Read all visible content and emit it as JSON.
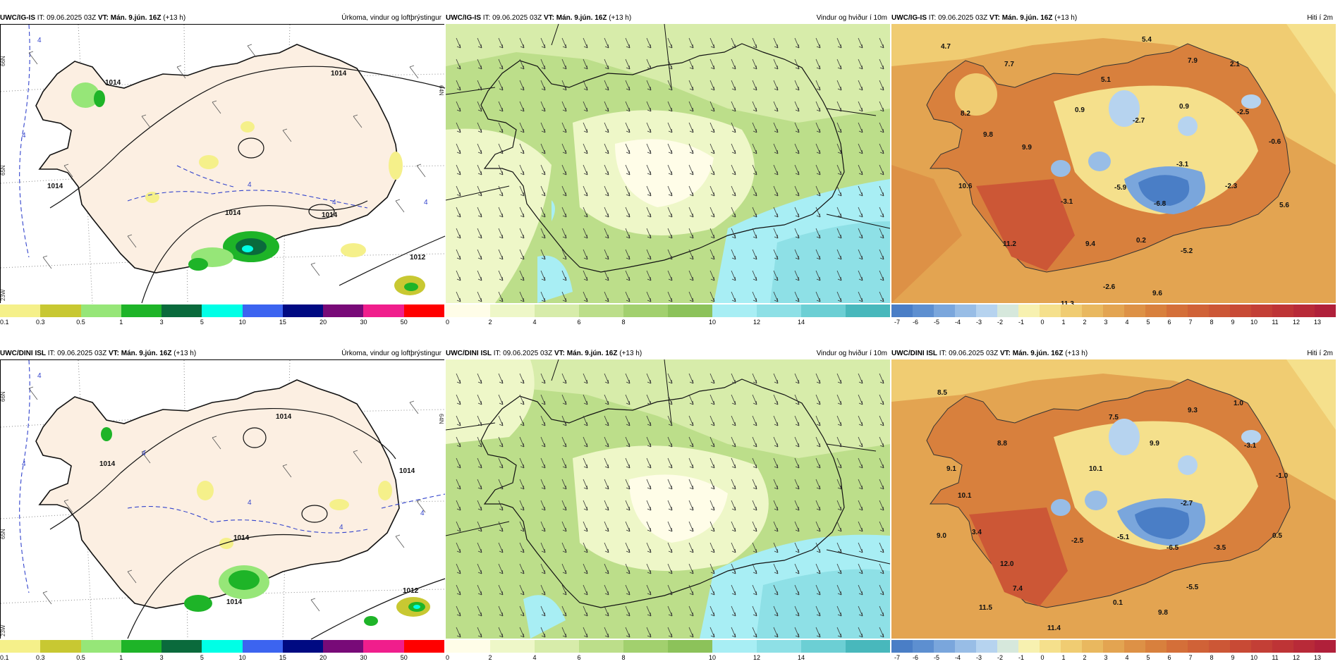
{
  "header": {
    "it_label": "IT:",
    "it_value": "09.06.2025 03Z",
    "vt_label": "VT:",
    "vt_value": "Mán. 9.jún. 16Z",
    "lead": "(+13 h)"
  },
  "models": [
    "UWC/IG-IS",
    "UWC/DINI ISL"
  ],
  "titles": {
    "precip": "Úrkoma, vindur og loftþrýstingur",
    "wind": "Vindur og hviður í 10m",
    "temp": "Hiti í 2m"
  },
  "legends": {
    "precip": {
      "colors": [
        "#f5f08a",
        "#c8c832",
        "#96e678",
        "#1eb428",
        "#0a6a3c",
        "#00ffe6",
        "#3c64f0",
        "#000a82",
        "#780a78",
        "#f01e8c",
        "#ff0000"
      ],
      "ticks": [
        "0.1",
        "0.3",
        "0.5",
        "1",
        "3",
        "5",
        "10",
        "15",
        "20",
        "30",
        "50"
      ]
    },
    "wind": {
      "colors": [
        "#fffde8",
        "#eef7c8",
        "#d7ecaa",
        "#bcde8a",
        "#a2d06e",
        "#8cc25a",
        "#a8eef4",
        "#8ee0e6",
        "#6ccfd4",
        "#48b8bc"
      ],
      "ticks": [
        "0",
        "2",
        "4",
        "6",
        "8",
        "10",
        "12",
        "14"
      ]
    },
    "temp": {
      "colors": [
        "#4a7ec6",
        "#5d8fd0",
        "#7aa6dc",
        "#98bde6",
        "#b6d3ef",
        "#d6e8dc",
        "#f7f1b0",
        "#f5e08c",
        "#f0cc72",
        "#e9b85f",
        "#e3a451",
        "#dd9146",
        "#d8803d",
        "#d46f39",
        "#d06237",
        "#cc5736",
        "#c84a35",
        "#c33f36",
        "#be3436",
        "#b82a38",
        "#b0203a"
      ],
      "ticks": [
        "-7",
        "-6",
        "-5",
        "-4",
        "-3",
        "-2",
        "-1",
        "0",
        "1",
        "2",
        "3",
        "4",
        "5",
        "6",
        "7",
        "8",
        "9",
        "10",
        "11",
        "12",
        "13"
      ]
    }
  },
  "pressure_labels": {
    "top": [
      "1014",
      "1014",
      "1014",
      "1012",
      "1014",
      "1014"
    ],
    "bottom": [
      "1014",
      "1014",
      "1014",
      "1012",
      "1014",
      "1014"
    ]
  },
  "dashed_labels": {
    "top": [
      "4",
      "4",
      "4",
      "4",
      "4"
    ],
    "bottom": [
      "4",
      "4",
      "4",
      "4",
      "4",
      "4"
    ]
  },
  "graticule": [
    "66N",
    "65N",
    "64N",
    "23W"
  ],
  "temps": {
    "top": [
      "4.7",
      "5.4",
      "7.7",
      "7.9",
      "2.1",
      "8.2",
      "5.1",
      "-2.7",
      "0.9",
      "0.9",
      "-2.5",
      "9.8",
      "-0.6",
      "9.9",
      "-3.1",
      "10.6",
      "-5.9",
      "-2.3",
      "-3.1",
      "-6.8",
      "5.6",
      "11.2",
      "9.4",
      "0.2",
      "-5.2",
      "-2.6",
      "9.6",
      "11.3"
    ],
    "bottom": [
      "8.5",
      "9.3",
      "1.0",
      "7.5",
      "8.8",
      "9.9",
      "-3.1",
      "9.1",
      "10.1",
      "-1.0",
      "10.1",
      "-2.7",
      "9.0",
      "3.4",
      "-2.5",
      "-5.1",
      "-6.5",
      "-3.5",
      "0.5",
      "12.0",
      "-5.5",
      "7.4",
      "0.1",
      "11.5",
      "9.8",
      "11.4"
    ]
  }
}
